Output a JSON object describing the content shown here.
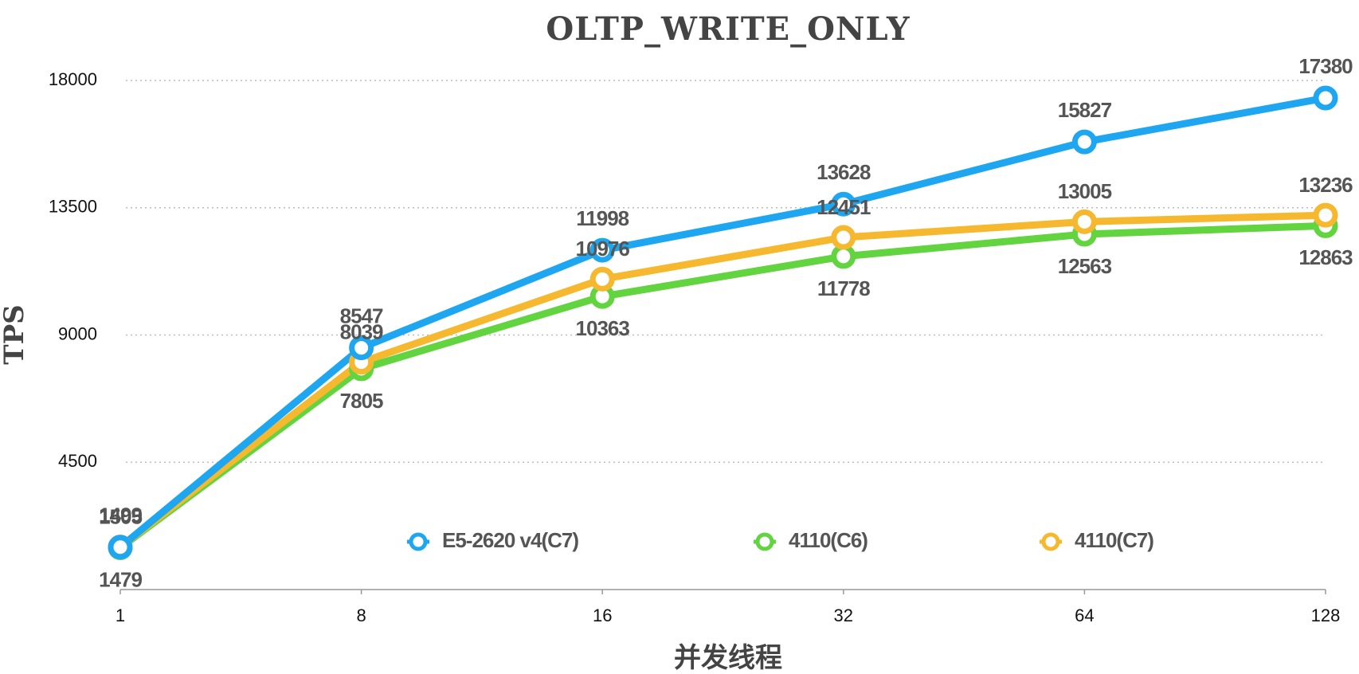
{
  "chart_data": {
    "type": "line",
    "title": "OLTP_WRITE_ONLY",
    "x_label": "并发线程",
    "y_label": "TPS",
    "categories": [
      "1",
      "8",
      "16",
      "32",
      "64",
      "128"
    ],
    "series": [
      {
        "name": "E5-2620 v4(C7)",
        "color": "#1ea7f0",
        "values": [
          1499,
          8547,
          11998,
          13628,
          15827,
          17380
        ]
      },
      {
        "name": "4110(C6)",
        "color": "#62d43f",
        "values": [
          1479,
          7805,
          10363,
          11778,
          12563,
          12863
        ]
      },
      {
        "name": "4110(C7)",
        "color": "#f5b82e",
        "values": [
          1505,
          8039,
          10976,
          12451,
          13005,
          13236
        ]
      }
    ],
    "ylim": [
      0,
      18000
    ],
    "yticks": [
      4500,
      9000,
      13500,
      18000
    ],
    "grid": true,
    "legend": "lower center"
  }
}
